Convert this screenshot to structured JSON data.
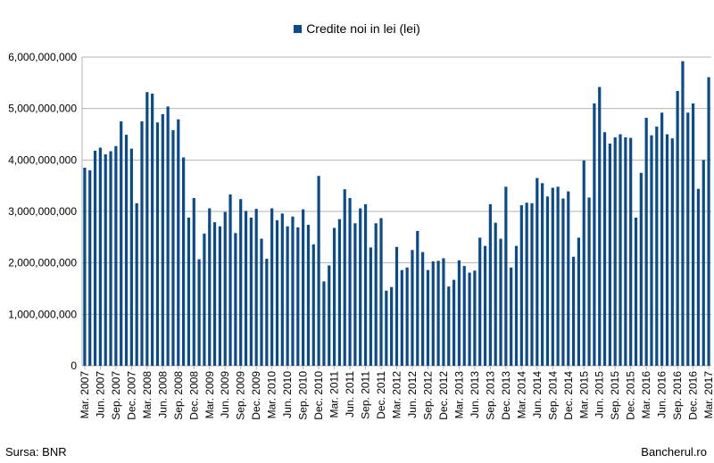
{
  "chart_data": {
    "type": "bar",
    "legend_position": "top",
    "grid": true,
    "ylim": [
      0,
      6000000000
    ],
    "yticks": [
      "0",
      "1,000,000,000",
      "2,000,000,000",
      "3,000,000,000",
      "4,000,000,000",
      "5,000,000,000",
      "6,000,000,000"
    ],
    "bar_color": "#0b4a8b",
    "categories": [
      "Mar. 2007",
      "Apr. 2007",
      "May 2007",
      "Jun. 2007",
      "Jul. 2007",
      "Aug. 2007",
      "Sep. 2007",
      "Oct. 2007",
      "Nov. 2007",
      "Dec. 2007",
      "Jan. 2008",
      "Feb. 2008",
      "Mar. 2008",
      "Apr. 2008",
      "May 2008",
      "Jun. 2008",
      "Jul. 2008",
      "Aug. 2008",
      "Sep. 2008",
      "Oct. 2008",
      "Nov. 2008",
      "Dec. 2008",
      "Jan. 2009",
      "Feb. 2009",
      "Mar. 2009",
      "Apr. 2009",
      "May 2009",
      "Jun. 2009",
      "Jul. 2009",
      "Aug. 2009",
      "Sep. 2009",
      "Oct. 2009",
      "Nov. 2009",
      "Dec. 2009",
      "Jan. 2010",
      "Feb. 2010",
      "Mar. 2010",
      "Apr. 2010",
      "May 2010",
      "Jun. 2010",
      "Jul. 2010",
      "Aug. 2010",
      "Sep. 2010",
      "Oct. 2010",
      "Nov. 2010",
      "Dec. 2010",
      "Jan. 2011",
      "Feb. 2011",
      "Mar. 2011",
      "Apr. 2011",
      "May 2011",
      "Jun. 2011",
      "Jul. 2011",
      "Aug. 2011",
      "Sep. 2011",
      "Oct. 2011",
      "Nov. 2011",
      "Dec. 2011",
      "Jan. 2012",
      "Feb. 2012",
      "Mar. 2012",
      "Apr. 2012",
      "May 2012",
      "Jun. 2012",
      "Jul. 2012",
      "Aug. 2012",
      "Sep. 2012",
      "Oct. 2012",
      "Nov. 2012",
      "Dec. 2012",
      "Jan. 2013",
      "Feb. 2013",
      "Mar. 2013",
      "Apr. 2013",
      "May 2013",
      "Jun. 2013",
      "Jul. 2013",
      "Aug. 2013",
      "Sep. 2013",
      "Oct. 2013",
      "Nov. 2013",
      "Dec. 2013",
      "Jan. 2014",
      "Feb. 2014",
      "Mar. 2014",
      "Apr. 2014",
      "May 2014",
      "Jun. 2014",
      "Jul. 2014",
      "Aug. 2014",
      "Sep. 2014",
      "Oct. 2014",
      "Nov. 2014",
      "Dec. 2014",
      "Jan. 2015",
      "Feb. 2015",
      "Mar. 2015",
      "Apr. 2015",
      "May 2015",
      "Jun. 2015",
      "Jul. 2015",
      "Aug. 2015",
      "Sep. 2015",
      "Oct. 2015",
      "Nov. 2015",
      "Dec. 2015",
      "Jan. 2016",
      "Feb. 2016",
      "Mar. 2016",
      "Apr. 2016",
      "May 2016",
      "Jun. 2016",
      "Jul. 2016",
      "Aug. 2016",
      "Sep. 2016",
      "Oct. 2016",
      "Nov. 2016",
      "Dec. 2016",
      "Jan. 2017",
      "Feb. 2017",
      "Mar. 2017"
    ],
    "shown_tick_labels": [
      "Mar. 2007",
      "Jun. 2007",
      "Sep. 2007",
      "Dec. 2007",
      "Mar. 2008",
      "Jun. 2008",
      "Sep. 2008",
      "Dec. 2008",
      "Mar. 2009",
      "Jun. 2009",
      "Sep. 2009",
      "Dec. 2009",
      "Mar. 2010",
      "Jun. 2010",
      "Sep. 2010",
      "Dec. 2010",
      "Mar. 2011",
      "Jun. 2011",
      "Sep. 2011",
      "Dec. 2011",
      "Mar. 2012",
      "Jun. 2012",
      "Sep. 2012",
      "Dec. 2012",
      "Mar. 2013",
      "Jun. 2013",
      "Sep. 2013",
      "Dec. 2013",
      "Mar. 2014",
      "Jun. 2014",
      "Sep. 2014",
      "Dec. 2014",
      "Mar. 2015",
      "Jun. 2015",
      "Sep. 2015",
      "Dec. 2015",
      "Mar. 2016",
      "Jun. 2016",
      "Sep. 2016",
      "Dec. 2016",
      "Mar. 2017"
    ],
    "series": [
      {
        "name": "Credite noi in lei (lei)",
        "values": [
          3850000000,
          3800000000,
          4180000000,
          4240000000,
          4110000000,
          4170000000,
          4270000000,
          4750000000,
          4490000000,
          4220000000,
          3160000000,
          4750000000,
          5320000000,
          5290000000,
          4730000000,
          4890000000,
          5040000000,
          4580000000,
          4790000000,
          4050000000,
          2880000000,
          3260000000,
          2070000000,
          2570000000,
          3060000000,
          2790000000,
          2710000000,
          2990000000,
          3330000000,
          2580000000,
          3240000000,
          3010000000,
          2880000000,
          3050000000,
          2470000000,
          2080000000,
          3060000000,
          2830000000,
          2960000000,
          2710000000,
          2900000000,
          2690000000,
          3040000000,
          2740000000,
          2360000000,
          3690000000,
          1640000000,
          1950000000,
          2680000000,
          2850000000,
          3430000000,
          3260000000,
          2770000000,
          3060000000,
          3140000000,
          2300000000,
          2770000000,
          2870000000,
          1460000000,
          1530000000,
          2310000000,
          1860000000,
          1910000000,
          2250000000,
          2620000000,
          2210000000,
          1860000000,
          2030000000,
          2040000000,
          2090000000,
          1540000000,
          1670000000,
          2050000000,
          1940000000,
          1810000000,
          1850000000,
          2490000000,
          2330000000,
          3140000000,
          2780000000,
          2470000000,
          3480000000,
          1910000000,
          2330000000,
          3120000000,
          3170000000,
          3160000000,
          3650000000,
          3550000000,
          3290000000,
          3460000000,
          3480000000,
          3250000000,
          3390000000,
          2120000000,
          2490000000,
          3990000000,
          3270000000,
          5100000000,
          5420000000,
          4540000000,
          4320000000,
          4440000000,
          4500000000,
          4440000000,
          4430000000,
          2880000000,
          3750000000,
          4820000000,
          4480000000,
          4650000000,
          4920000000,
          4500000000,
          4420000000,
          5340000000,
          5920000000,
          4920000000,
          5100000000,
          3440000000,
          4000000000,
          5610000000
        ]
      }
    ]
  },
  "footer": {
    "source": "Sursa: BNR",
    "brand": "Bancherul.ro"
  }
}
